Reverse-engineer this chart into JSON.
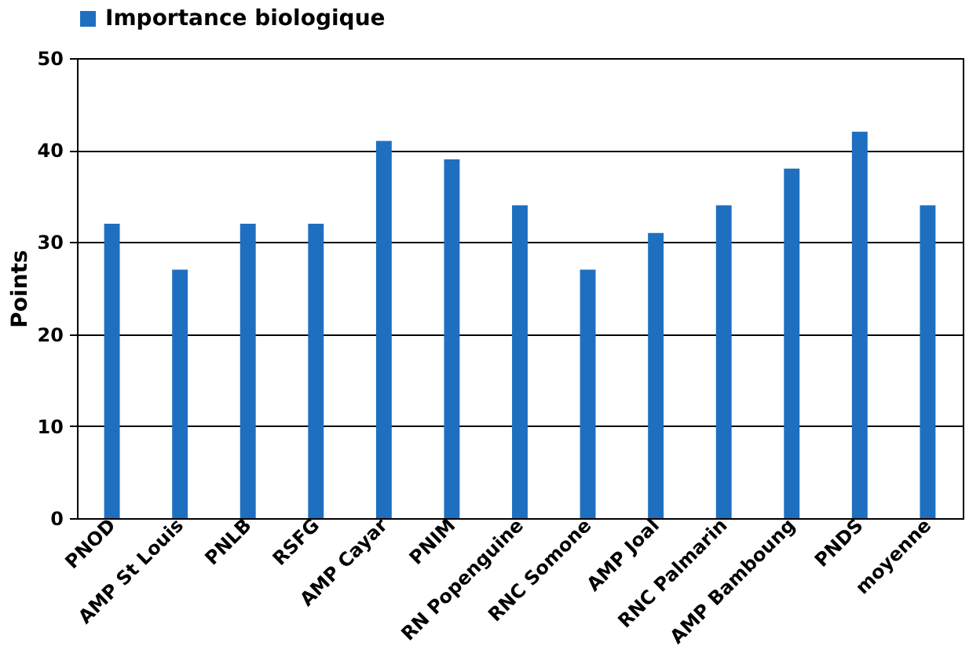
{
  "chart_data": {
    "type": "bar",
    "ylabel": "Points",
    "categories": [
      "PNOD",
      "AMP St Louis",
      "PNLB",
      "RSFG",
      "AMP Cayar",
      "PNIM",
      "RN Popenguine",
      "RNC Somone",
      "AMP Joal",
      "RNC Palmarin",
      "AMP Bamboung",
      "PNDS",
      "moyenne"
    ],
    "series": [
      {
        "name": "Importance biologique",
        "color": "#1f6fc0",
        "values": [
          32,
          27,
          32,
          32,
          41,
          39,
          34,
          27,
          31,
          34,
          38,
          42,
          34
        ]
      }
    ],
    "ylim": [
      0,
      50
    ],
    "yticks": [
      0,
      10,
      20,
      30,
      40,
      50
    ],
    "grid": "y",
    "legend": "top"
  }
}
